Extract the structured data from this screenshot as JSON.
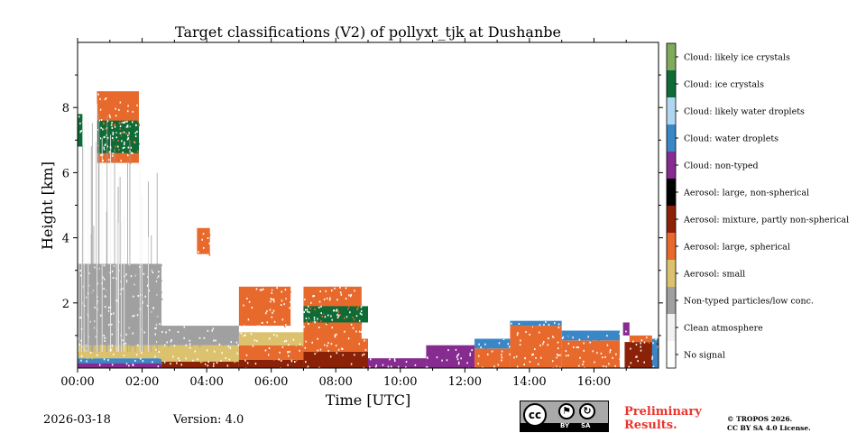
{
  "page": {
    "date": "2026-03-18",
    "version": "Version: 4.0",
    "preliminary_line1": "Preliminary",
    "preliminary_line2": "Results.",
    "copyright_line1": "© TROPOS 2026.",
    "copyright_line2": "CC BY SA 4.0 License.",
    "license_badge": {
      "cc": "cc",
      "by": "BY",
      "sa": "SA"
    }
  },
  "chart_data": {
    "type": "heatmap",
    "title": "Target classifications (V2) of pollyxt_tjk at Dushanbe",
    "xlabel": "Time [UTC]",
    "ylabel": "Height [km]",
    "xlim_hours": [
      0,
      18
    ],
    "ylim_km": [
      0,
      10
    ],
    "x_ticks": [
      {
        "hour": 0,
        "label": "00:00"
      },
      {
        "hour": 2,
        "label": "02:00"
      },
      {
        "hour": 4,
        "label": "04:00"
      },
      {
        "hour": 6,
        "label": "06:00"
      },
      {
        "hour": 8,
        "label": "08:00"
      },
      {
        "hour": 10,
        "label": "10:00"
      },
      {
        "hour": 12,
        "label": "12:00"
      },
      {
        "hour": 14,
        "label": "14:00"
      },
      {
        "hour": 16,
        "label": "16:00"
      }
    ],
    "y_ticks": [
      {
        "km": 2,
        "label": "2"
      },
      {
        "km": 4,
        "label": "4"
      },
      {
        "km": 6,
        "label": "6"
      },
      {
        "km": 8,
        "label": "8"
      }
    ],
    "classes": [
      {
        "id": 0,
        "label": "No signal",
        "color": "#ffffff"
      },
      {
        "id": 1,
        "label": "Clean atmosphere",
        "color": "#f2f2f2"
      },
      {
        "id": 2,
        "label": "Non-typed particles/low conc.",
        "color": "#a0a0a0"
      },
      {
        "id": 3,
        "label": "Aerosol: small",
        "color": "#dcc26e"
      },
      {
        "id": 4,
        "label": "Aerosol: large, spherical",
        "color": "#e8692c"
      },
      {
        "id": 5,
        "label": "Aerosol: mixture, partly non-spherical",
        "color": "#8b2208"
      },
      {
        "id": 6,
        "label": "Aerosol: large, non-spherical",
        "color": "#000000"
      },
      {
        "id": 7,
        "label": "Cloud: non-typed",
        "color": "#862b8f"
      },
      {
        "id": 8,
        "label": "Cloud: water droplets",
        "color": "#3a87c8"
      },
      {
        "id": 9,
        "label": "Cloud: likely water droplets",
        "color": "#b0d7f2"
      },
      {
        "id": 10,
        "label": "Cloud: ice crystals",
        "color": "#0f6b36"
      },
      {
        "id": 11,
        "label": "Cloud: likely ice crystals",
        "color": "#80ab5c"
      }
    ],
    "regions": [
      {
        "t0": 0.0,
        "t1": 2.6,
        "h0": 0.0,
        "h1": 0.15,
        "cls": 7
      },
      {
        "t0": 0.0,
        "t1": 2.6,
        "h0": 0.15,
        "h1": 0.3,
        "cls": 8
      },
      {
        "t0": 0.0,
        "t1": 2.6,
        "h0": 0.3,
        "h1": 0.7,
        "cls": 3
      },
      {
        "t0": 0.0,
        "t1": 2.6,
        "h0": 0.7,
        "h1": 3.2,
        "cls": 2
      },
      {
        "t0": 2.6,
        "t1": 5.0,
        "h0": 0.0,
        "h1": 0.2,
        "cls": 5
      },
      {
        "t0": 2.6,
        "t1": 5.0,
        "h0": 0.2,
        "h1": 0.7,
        "cls": 3
      },
      {
        "t0": 2.6,
        "t1": 5.0,
        "h0": 0.7,
        "h1": 1.3,
        "cls": 2
      },
      {
        "t0": 5.0,
        "t1": 7.0,
        "h0": 0.0,
        "h1": 0.25,
        "cls": 5
      },
      {
        "t0": 5.0,
        "t1": 7.0,
        "h0": 0.25,
        "h1": 0.7,
        "cls": 4
      },
      {
        "t0": 5.0,
        "t1": 7.0,
        "h0": 0.7,
        "h1": 1.1,
        "cls": 3
      },
      {
        "t0": 7.0,
        "t1": 9.0,
        "h0": 0.0,
        "h1": 0.5,
        "cls": 5
      },
      {
        "t0": 7.0,
        "t1": 9.0,
        "h0": 0.5,
        "h1": 0.9,
        "cls": 4
      },
      {
        "t0": 9.0,
        "t1": 10.8,
        "h0": 0.0,
        "h1": 0.3,
        "cls": 7
      },
      {
        "t0": 10.8,
        "t1": 12.3,
        "h0": 0.0,
        "h1": 0.7,
        "cls": 7
      },
      {
        "t0": 12.3,
        "t1": 13.4,
        "h0": 0.0,
        "h1": 0.6,
        "cls": 4
      },
      {
        "t0": 12.3,
        "t1": 13.4,
        "h0": 0.6,
        "h1": 0.9,
        "cls": 8
      },
      {
        "t0": 13.4,
        "t1": 15.0,
        "h0": 0.0,
        "h1": 1.3,
        "cls": 4
      },
      {
        "t0": 13.4,
        "t1": 15.0,
        "h0": 1.3,
        "h1": 1.45,
        "cls": 8
      },
      {
        "t0": 15.0,
        "t1": 16.8,
        "h0": 0.0,
        "h1": 0.85,
        "cls": 4
      },
      {
        "t0": 15.0,
        "t1": 16.8,
        "h0": 0.85,
        "h1": 1.15,
        "cls": 8
      },
      {
        "t0": 16.95,
        "t1": 18.0,
        "h0": 0.0,
        "h1": 0.8,
        "cls": 5
      },
      {
        "t0": 17.1,
        "t1": 17.8,
        "h0": 0.8,
        "h1": 1.0,
        "cls": 4
      },
      {
        "t0": 17.8,
        "t1": 18.0,
        "h0": 0.0,
        "h1": 0.9,
        "cls": 8
      },
      {
        "t0": 16.9,
        "t1": 17.1,
        "h0": 1.0,
        "h1": 1.4,
        "cls": 7
      },
      {
        "t0": 0.0,
        "t1": 0.15,
        "h0": 6.8,
        "h1": 7.8,
        "cls": 10
      },
      {
        "t0": 0.6,
        "t1": 1.9,
        "h0": 6.3,
        "h1": 8.5,
        "cls": 4
      },
      {
        "t0": 0.6,
        "t1": 1.9,
        "h0": 6.6,
        "h1": 7.6,
        "cls": 10
      },
      {
        "t0": 3.7,
        "t1": 4.1,
        "h0": 3.5,
        "h1": 4.3,
        "cls": 4
      },
      {
        "t0": 5.0,
        "t1": 6.6,
        "h0": 1.3,
        "h1": 2.5,
        "cls": 4
      },
      {
        "t0": 7.0,
        "t1": 8.8,
        "h0": 0.9,
        "h1": 2.5,
        "cls": 4
      },
      {
        "t0": 7.0,
        "t1": 9.0,
        "h0": 1.4,
        "h1": 1.9,
        "cls": 10
      }
    ]
  }
}
